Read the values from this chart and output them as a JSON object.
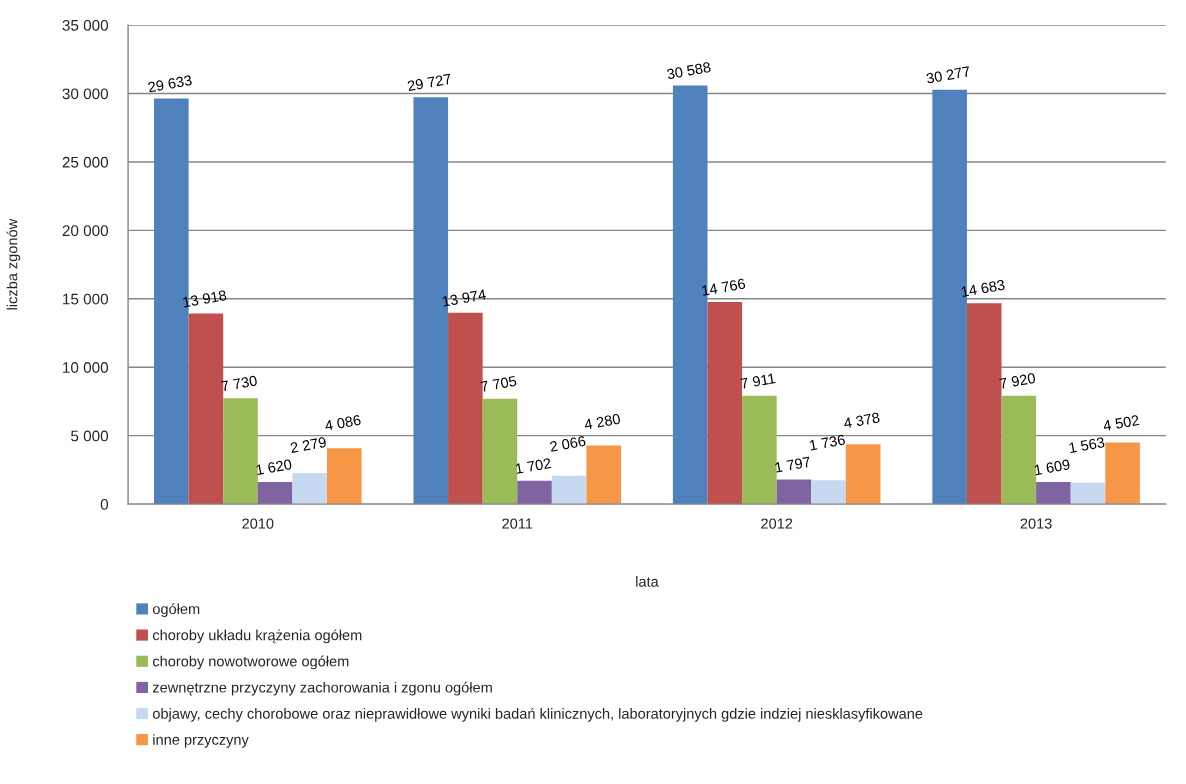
{
  "chart_data": {
    "type": "bar",
    "categories": [
      "2010",
      "2011",
      "2012",
      "2013"
    ],
    "series": [
      {
        "name": "ogółem",
        "color": "#4f81bd",
        "values": [
          29633,
          29727,
          30588,
          30277
        ],
        "value_labels": [
          "29 633",
          "29 727",
          "30 588",
          "30 277"
        ]
      },
      {
        "name": "choroby układu krążenia ogółem",
        "color": "#c0504d",
        "values": [
          13918,
          13974,
          14766,
          14683
        ],
        "value_labels": [
          "13 918",
          "13 974",
          "14 766",
          "14 683"
        ]
      },
      {
        "name": "choroby nowotworowe ogółem",
        "color": "#9bbb59",
        "values": [
          7730,
          7705,
          7911,
          7920
        ],
        "value_labels": [
          "7 730",
          "7 705",
          "7 911",
          "7 920"
        ]
      },
      {
        "name": "zewnętrzne przyczyny zachorowania i zgonu ogółem",
        "color": "#8064a2",
        "values": [
          1620,
          1702,
          1797,
          1609
        ],
        "value_labels": [
          "1 620",
          "1 702",
          "1 797",
          "1 609"
        ]
      },
      {
        "name": "objawy, cechy chorobowe oraz nieprawidłowe wyniki badań klinicznych, laboratoryjnych gdzie indziej niesklasyfikowane",
        "color": "#c6d9f1",
        "values": [
          2279,
          2066,
          1736,
          1563
        ],
        "value_labels": [
          "2 279",
          "2 066",
          "1 736",
          "1 563"
        ]
      },
      {
        "name": "inne przyczyny",
        "color": "#f79646",
        "values": [
          4086,
          4280,
          4378,
          4502
        ],
        "value_labels": [
          "4 086",
          "4 280",
          "4 378",
          "4 502"
        ]
      }
    ],
    "xlabel": "lata",
    "ylabel": "liczba zgonów",
    "ylim": [
      0,
      35000
    ],
    "yticks": [
      0,
      {
        "value": 5000,
        "label": "5 000"
      },
      {
        "value": 10000,
        "label": "10 000"
      },
      {
        "value": 15000,
        "label": "15 000"
      },
      {
        "value": 20000,
        "label": "20 000"
      },
      {
        "value": 25000,
        "label": "25 000"
      },
      {
        "value": 30000,
        "label": "30 000"
      },
      {
        "value": 35000,
        "label": "35 000"
      }
    ],
    "grid": "y",
    "legend": "bottom"
  }
}
